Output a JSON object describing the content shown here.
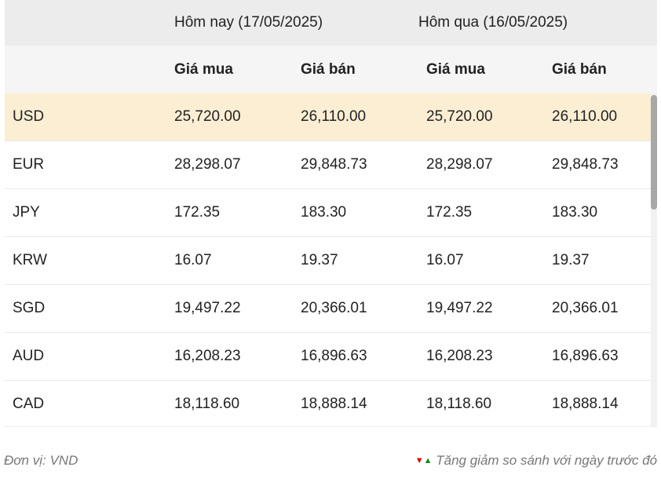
{
  "header": {
    "today": "Hôm nay (17/05/2025)",
    "yesterday": "Hôm qua (16/05/2025)",
    "buy": "Giá mua",
    "sell": "Giá bán"
  },
  "rows": [
    {
      "currency": "USD",
      "today_buy": "25,720.00",
      "today_sell": "26,110.00",
      "yest_buy": "25,720.00",
      "yest_sell": "26,110.00"
    },
    {
      "currency": "EUR",
      "today_buy": "28,298.07",
      "today_sell": "29,848.73",
      "yest_buy": "28,298.07",
      "yest_sell": "29,848.73"
    },
    {
      "currency": "JPY",
      "today_buy": "172.35",
      "today_sell": "183.30",
      "yest_buy": "172.35",
      "yest_sell": "183.30"
    },
    {
      "currency": "KRW",
      "today_buy": "16.07",
      "today_sell": "19.37",
      "yest_buy": "16.07",
      "yest_sell": "19.37"
    },
    {
      "currency": "SGD",
      "today_buy": "19,497.22",
      "today_sell": "20,366.01",
      "yest_buy": "19,497.22",
      "yest_sell": "20,366.01"
    },
    {
      "currency": "AUD",
      "today_buy": "16,208.23",
      "today_sell": "16,896.63",
      "yest_buy": "16,208.23",
      "yest_sell": "16,896.63"
    },
    {
      "currency": "CAD",
      "today_buy": "18,118.60",
      "today_sell": "18,888.14",
      "yest_buy": "18,118.60",
      "yest_sell": "18,888.14"
    }
  ],
  "footer": {
    "unit": "Đơn vị: VND",
    "legend": "Tăng giảm so sánh với ngày trước đó",
    "down_color": "#e00000",
    "up_color": "#1a8a1a"
  },
  "highlight_color": "#fbeed3"
}
